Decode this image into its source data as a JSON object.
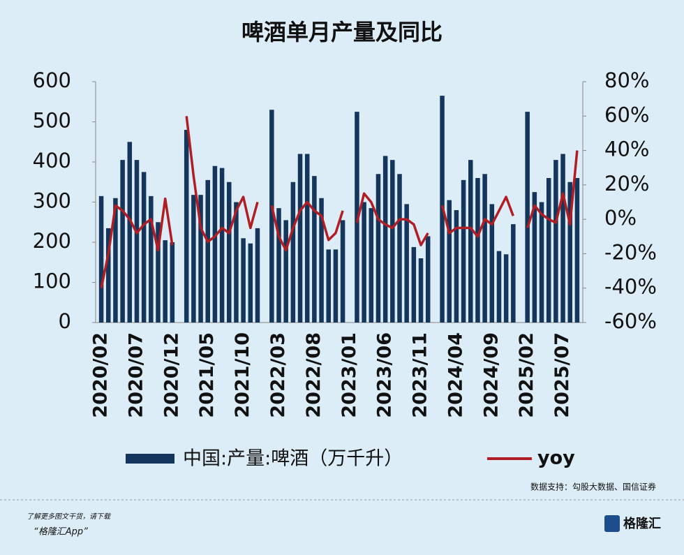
{
  "chart_data": {
    "type": "bar-line",
    "title": "啤酒单月产量及同比",
    "categories": [
      "2020/02",
      null,
      null,
      null,
      null,
      "2020/07",
      null,
      null,
      null,
      null,
      "2020/12",
      null,
      null,
      null,
      null,
      "2021/05",
      null,
      null,
      null,
      null,
      "2021/10",
      null,
      null,
      null,
      null,
      "2022/03",
      null,
      null,
      null,
      null,
      "2022/08",
      null,
      null,
      null,
      null,
      "2023/01",
      null,
      null,
      null,
      null,
      "2023/06",
      null,
      null,
      null,
      null,
      "2023/11",
      null,
      null,
      null,
      null,
      "2024/04",
      null,
      null,
      null,
      null,
      "2024/09",
      null,
      null,
      null,
      null,
      "2025/02",
      null,
      null,
      null,
      null,
      "2025/07",
      null,
      null
    ],
    "series": [
      {
        "name": "中国:产量:啤酒（万千升）",
        "type": "bar",
        "color": "#15365c",
        "values": [
          315,
          235,
          310,
          405,
          450,
          405,
          375,
          315,
          250,
          205,
          200,
          null,
          480,
          318,
          318,
          355,
          390,
          385,
          350,
          300,
          210,
          197,
          235,
          null,
          530,
          285,
          255,
          350,
          420,
          420,
          365,
          310,
          182,
          182,
          255,
          null,
          525,
          300,
          285,
          370,
          415,
          405,
          370,
          295,
          188,
          160,
          215,
          null,
          565,
          305,
          280,
          355,
          405,
          360,
          370,
          295,
          178,
          170,
          245,
          null,
          525,
          325,
          300,
          360,
          405,
          420,
          350,
          360
        ]
      },
      {
        "name": "yoy",
        "type": "line",
        "axis": "y2",
        "color": "#b01e23",
        "values": [
          -40,
          -20,
          8,
          5,
          0,
          -8,
          -3,
          0,
          -18,
          12,
          -15,
          null,
          60,
          25,
          -5,
          -13,
          -10,
          -5,
          -8,
          5,
          13,
          -5,
          10,
          null,
          8,
          -10,
          -18,
          -5,
          5,
          10,
          5,
          2,
          -12,
          -8,
          5,
          null,
          -2,
          15,
          10,
          0,
          -3,
          -5,
          0,
          0,
          -3,
          -15,
          -8,
          null,
          8,
          -8,
          -5,
          -5,
          -5,
          -10,
          0,
          -3,
          5,
          13,
          2,
          null,
          -5,
          8,
          3,
          0,
          -2,
          15,
          -3,
          40
        ]
      }
    ],
    "ylim": [
      0,
      600
    ],
    "yticks": [
      0,
      100,
      200,
      300,
      400,
      500,
      600
    ],
    "y2lim": [
      -60,
      80
    ],
    "y2ticks": [
      {
        "value": -60,
        "label": "-60%"
      },
      {
        "value": -40,
        "label": "-40%"
      },
      {
        "value": -20,
        "label": "-20%"
      },
      {
        "value": 0,
        "label": "0%"
      },
      {
        "value": 20,
        "label": "20%"
      },
      {
        "value": 40,
        "label": "40%"
      },
      {
        "value": 60,
        "label": "60%"
      },
      {
        "value": 80,
        "label": "80%"
      }
    ],
    "source": "数据支持：勾股大数据、国信证券"
  },
  "footer": {
    "line1": "了解更多图文干货，请下载",
    "line2": "“格隆汇App”",
    "logo": "格隆汇"
  }
}
